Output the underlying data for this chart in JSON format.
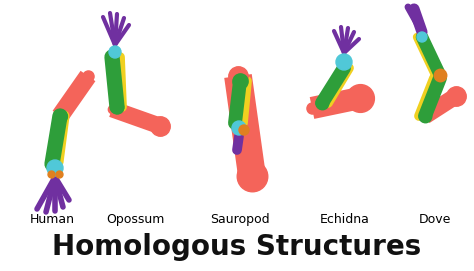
{
  "title": "Homologous Structures",
  "title_fontsize": 20,
  "title_fontweight": "bold",
  "labels": [
    "Human",
    "Opossum",
    "Sauropod",
    "Echidna",
    "Dove"
  ],
  "label_fontsize": 9,
  "bg_color": "#ffffff",
  "colors": {
    "humerus": "#F4645A",
    "radius": "#2E9E3A",
    "ulna": "#F0D020",
    "carpals": "#50C8D8",
    "digits": "#7030A0",
    "metacarpal": "#E08020",
    "outline": "#555555"
  },
  "fig_width": 4.74,
  "fig_height": 2.71,
  "dpi": 100
}
